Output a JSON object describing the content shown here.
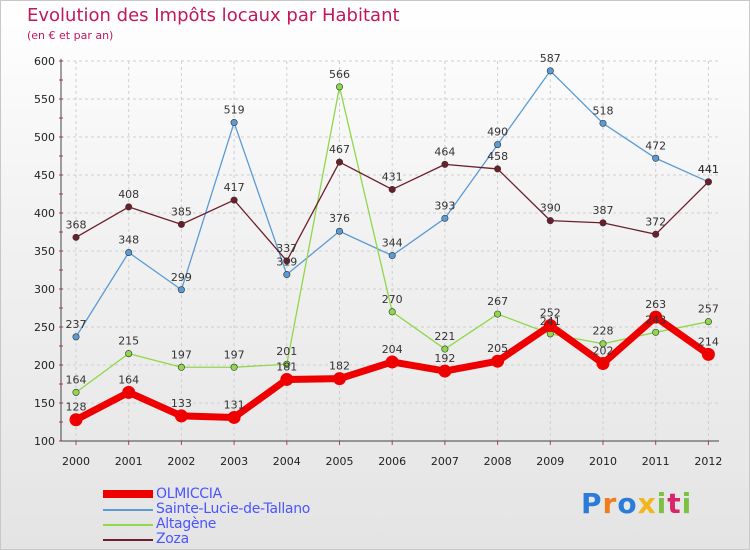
{
  "title": "Evolution des Impôts locaux par Habitant",
  "subtitle": "(en € et par an)",
  "brand": {
    "letters": [
      "P",
      "r",
      "o",
      "x",
      "i",
      "t",
      "i"
    ],
    "colors": [
      "#2b7bd8",
      "#f07d1a",
      "#2b7bd8",
      "#f2b61c",
      "#7cc242",
      "#d9266b",
      "#7cc242"
    ]
  },
  "chart_data": {
    "type": "line",
    "title": "Evolution des Impôts locaux par Habitant",
    "ylabel": "(en € et par an)",
    "xlabel": "",
    "ylim": [
      100,
      600
    ],
    "yticks": [
      100,
      150,
      200,
      250,
      300,
      350,
      400,
      450,
      500,
      550,
      600
    ],
    "x": [
      "2000",
      "2001",
      "2002",
      "2003",
      "2004",
      "2005",
      "2006",
      "2007",
      "2008",
      "2009",
      "2010",
      "2011",
      "2012"
    ],
    "series": [
      {
        "name": "Sainte-Lucie-de-Tallano",
        "color": "#5b9bd5",
        "values": [
          237,
          348,
          299,
          519,
          319,
          376,
          344,
          393,
          490,
          587,
          518,
          472,
          441
        ]
      },
      {
        "name": "Altagène",
        "color": "#8ed84a",
        "values": [
          164,
          215,
          197,
          197,
          201,
          566,
          270,
          221,
          267,
          241,
          228,
          243,
          257
        ]
      },
      {
        "name": "Zoza",
        "color": "#6b1f2a",
        "values": [
          368,
          408,
          385,
          417,
          337,
          467,
          431,
          464,
          458,
          390,
          387,
          372,
          441
        ]
      },
      {
        "name": "OLMICCIA",
        "color": "#ee0000",
        "values": [
          128,
          164,
          133,
          131,
          181,
          182,
          204,
          192,
          205,
          252,
          202,
          263,
          214
        ]
      }
    ],
    "labels": [
      {
        "series": "Sainte-Lucie-de-Tallano",
        "text": [
          "237",
          "348",
          "299",
          "519",
          "319",
          "376",
          "344",
          "393",
          "490",
          "587",
          "518",
          "472",
          "441"
        ]
      },
      {
        "series": "Altagène",
        "text": [
          "164",
          "215",
          "197",
          "197",
          "201",
          "566",
          "270",
          "221",
          "267",
          "241",
          "228",
          "243",
          "257"
        ]
      },
      {
        "series": "Zoza",
        "text": [
          "368",
          "408",
          "385",
          "417",
          "337",
          "467",
          "431",
          "464",
          "458",
          "390",
          "387",
          "372",
          "441"
        ]
      },
      {
        "series": "OLMICCIA",
        "text": [
          "128",
          "164",
          "133",
          "131",
          "181",
          "182",
          "204",
          "192",
          "205",
          "252",
          "202",
          "263",
          "214"
        ]
      }
    ],
    "legend": [
      "OLMICCIA",
      "Sainte-Lucie-de-Tallano",
      "Altagène",
      "Zoza"
    ],
    "legend_position": "bottom-left",
    "grid": true
  }
}
